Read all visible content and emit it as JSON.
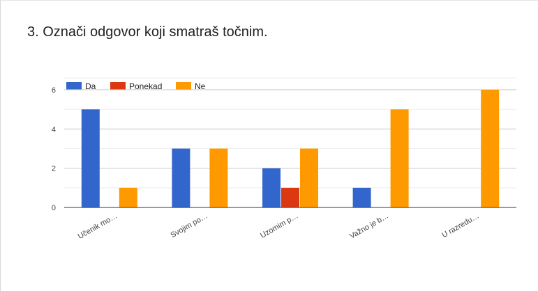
{
  "question": {
    "title": "3. Označi odgovor koji smatraš točnim."
  },
  "chart_data": {
    "type": "bar",
    "categories": [
      "Učenik mo…",
      "Svojim po…",
      "Uzomim p…",
      "Važno je b…",
      "U razredu…"
    ],
    "series": [
      {
        "name": "Da",
        "color": "#3366cc",
        "values": [
          5,
          3,
          2,
          1,
          0
        ]
      },
      {
        "name": "Ponekad",
        "color": "#dc3912",
        "values": [
          0,
          0,
          1,
          0,
          0
        ]
      },
      {
        "name": "Ne",
        "color": "#ff9900",
        "values": [
          1,
          3,
          3,
          5,
          6
        ]
      }
    ],
    "yticks": [
      0,
      2,
      4,
      6
    ],
    "ylim": [
      0,
      6.6
    ],
    "grid": true,
    "legend_position": "top-left"
  }
}
